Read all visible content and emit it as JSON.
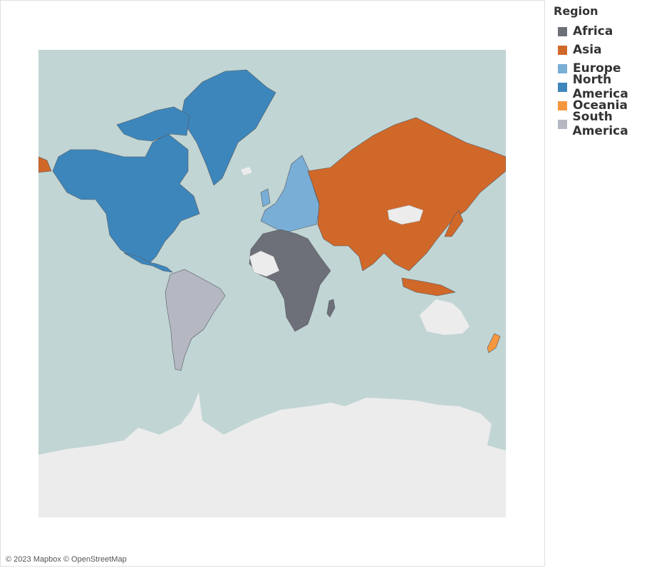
{
  "legend": {
    "title": "Region",
    "items": [
      {
        "label": "Africa",
        "color": "#6e7079"
      },
      {
        "label": "Asia",
        "color": "#d0682a"
      },
      {
        "label": "Europe",
        "color": "#79aed6"
      },
      {
        "label": "North America",
        "color": "#3d86bc"
      },
      {
        "label": "Oceania",
        "color": "#f5973e"
      },
      {
        "label": "South America",
        "color": "#b5b8c3"
      }
    ]
  },
  "map": {
    "ocean_color": "#c1d5d4",
    "land_color": "#ececec",
    "border_color": "#555a60"
  },
  "attribution": "© 2023 Mapbox © OpenStreetMap"
}
